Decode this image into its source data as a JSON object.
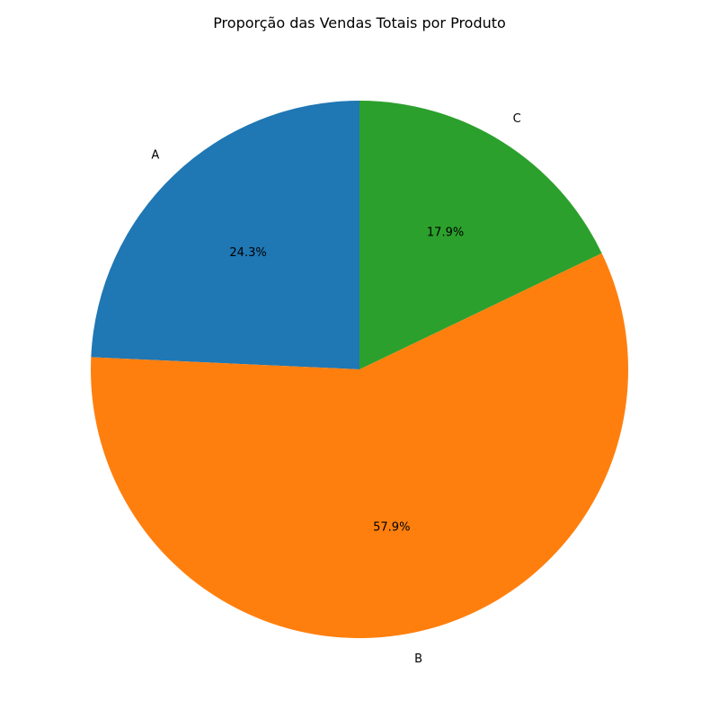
{
  "chart_data": {
    "type": "pie",
    "title": "Proporção das Vendas Totais por Produto",
    "labels": [
      "A",
      "B",
      "C"
    ],
    "values": [
      24.3,
      57.9,
      17.9
    ],
    "percent_labels": [
      "24.3%",
      "57.9%",
      "17.9%"
    ],
    "colors": [
      "#1f77b4",
      "#ff7f0e",
      "#2ca02c"
    ],
    "start_angle_deg": 90,
    "direction": "counterclockwise"
  }
}
